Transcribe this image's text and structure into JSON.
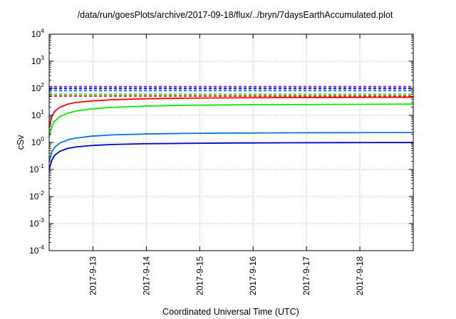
{
  "chart_data": {
    "type": "line",
    "title": "/data/run/goesPlots/archive/2017-09-18/flux/../bryn/7daysEarthAccumulated.plot",
    "xlabel": "Coordinated Universal Time (UTC)",
    "ylabel": "cSv",
    "yscale": "log",
    "ylim": [
      0.0001,
      10000
    ],
    "xlim": [
      0,
      6.82
    ],
    "grid": true,
    "x_ticks": [
      {
        "pos": 0.82,
        "label": "2017-9-13"
      },
      {
        "pos": 1.82,
        "label": "2017-9-14"
      },
      {
        "pos": 2.82,
        "label": "2017-9-15"
      },
      {
        "pos": 3.82,
        "label": "2017-9-16"
      },
      {
        "pos": 4.82,
        "label": "2017-9-17"
      },
      {
        "pos": 5.82,
        "label": "2017-9-18"
      }
    ],
    "y_ticks": [
      {
        "value": 0.0001,
        "base": "10",
        "exp": "-4"
      },
      {
        "value": 0.001,
        "base": "10",
        "exp": "-3"
      },
      {
        "value": 0.01,
        "base": "10",
        "exp": "-2"
      },
      {
        "value": 0.1,
        "base": "10",
        "exp": "-1"
      },
      {
        "value": 1,
        "base": "10",
        "exp": "0"
      },
      {
        "value": 10,
        "base": "10",
        "exp": "1"
      },
      {
        "value": 100,
        "base": "10",
        "exp": "2"
      },
      {
        "value": 1000,
        "base": "10",
        "exp": "3"
      },
      {
        "value": 10000,
        "base": "10",
        "exp": "4"
      }
    ],
    "series": [
      {
        "color": "#ff0000",
        "style": "solid",
        "x": [
          0,
          0.05,
          0.1,
          0.2,
          0.35,
          0.5,
          0.8,
          1.2,
          1.8,
          2.5,
          3.5,
          4.5,
          5.5,
          6.82
        ],
        "y": [
          3.5,
          9,
          14,
          20,
          26,
          30,
          34,
          38,
          41,
          43,
          44.5,
          45.5,
          46,
          46.5
        ]
      },
      {
        "color": "#00ee00",
        "style": "solid",
        "x": [
          0,
          0.05,
          0.1,
          0.2,
          0.35,
          0.5,
          0.8,
          1.2,
          1.8,
          2.5,
          3.5,
          4.5,
          5.5,
          6.82
        ],
        "y": [
          1.6,
          4,
          6,
          9,
          12,
          14.5,
          17.5,
          20,
          22,
          23.5,
          24.5,
          25,
          25.5,
          26
        ]
      },
      {
        "color": "#0077ee",
        "style": "solid",
        "x": [
          0,
          0.05,
          0.1,
          0.2,
          0.35,
          0.5,
          0.8,
          1.2,
          1.8,
          2.5,
          3.5,
          4.5,
          5.5,
          6.82
        ],
        "y": [
          0.2,
          0.45,
          0.65,
          0.95,
          1.25,
          1.45,
          1.7,
          1.9,
          2.05,
          2.15,
          2.22,
          2.27,
          2.3,
          2.32
        ]
      },
      {
        "color": "#0000cc",
        "style": "solid",
        "x": [
          0,
          0.05,
          0.1,
          0.2,
          0.35,
          0.5,
          0.8,
          1.2,
          1.8,
          2.5,
          3.5,
          4.5,
          5.5,
          6.82
        ],
        "y": [
          0.1,
          0.22,
          0.33,
          0.47,
          0.6,
          0.68,
          0.77,
          0.84,
          0.89,
          0.92,
          0.95,
          0.97,
          0.98,
          0.99
        ]
      },
      {
        "color": "#9400d3",
        "style": "dashed",
        "x": [
          0,
          6.82
        ],
        "y": [
          115,
          115
        ]
      },
      {
        "color": "#0000cc",
        "style": "dashed",
        "x": [
          0,
          6.82
        ],
        "y": [
          98,
          98
        ]
      },
      {
        "color": "#0077ee",
        "style": "dashed",
        "x": [
          0,
          6.82
        ],
        "y": [
          82,
          82
        ]
      },
      {
        "color": "#00ee00",
        "style": "dashed",
        "x": [
          0,
          6.82
        ],
        "y": [
          60,
          60
        ]
      },
      {
        "color": "#ff0000",
        "style": "dashed",
        "x": [
          0,
          6.82
        ],
        "y": [
          52,
          52
        ]
      }
    ]
  }
}
